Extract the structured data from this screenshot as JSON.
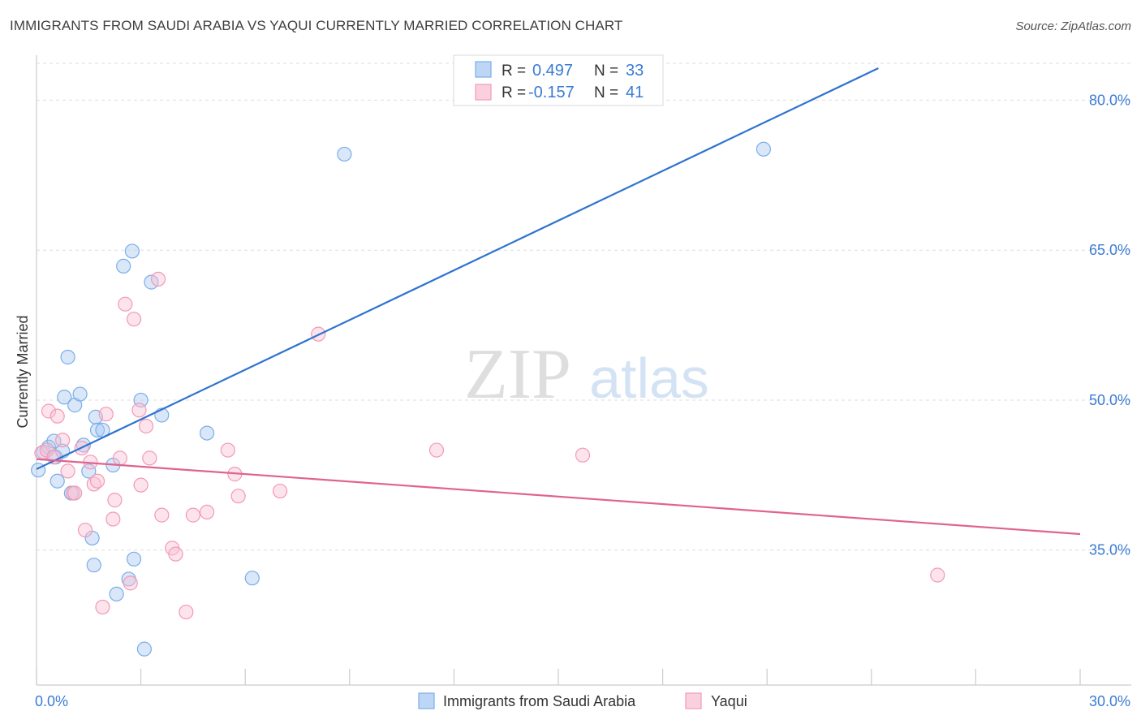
{
  "header": {
    "title": "IMMIGRANTS FROM SAUDI ARABIA VS YAQUI CURRENTLY MARRIED CORRELATION CHART",
    "source": "Source: ZipAtlas.com"
  },
  "watermark": {
    "zip": "ZIP",
    "atlas": "atlas"
  },
  "stats": [
    {
      "r_label": "R =",
      "r_value": "0.497",
      "n_label": "N =",
      "n_value": "33",
      "color": "#7aaee8"
    },
    {
      "r_label": "R =",
      "r_value": "-0.157",
      "n_label": "N =",
      "n_value": "41",
      "color": "#f29ab5"
    }
  ],
  "legend": [
    {
      "label": "Immigrants from Saudi Arabia",
      "color": "#7aaee8"
    },
    {
      "label": "Yaqui",
      "color": "#f29ab5"
    }
  ],
  "chart_data": {
    "type": "scatter",
    "xlabel": "",
    "ylabel": "Currently Married",
    "xlim": [
      0,
      30
    ],
    "ylim": [
      21.5,
      84.5
    ],
    "x_tick_labels": [
      {
        "value": 0,
        "label": "0.0%"
      },
      {
        "value": 30,
        "label": "30.0%"
      }
    ],
    "y_tick_labels": [
      {
        "value": 35,
        "label": "35.0%"
      },
      {
        "value": 50,
        "label": "50.0%"
      },
      {
        "value": 65,
        "label": "65.0%"
      },
      {
        "value": 80,
        "label": "80.0%"
      }
    ],
    "x_minor_ticks": [
      0,
      3,
      6,
      9,
      12,
      15,
      18,
      21,
      24,
      27,
      30
    ],
    "gridlines": true,
    "series": [
      {
        "name": "Immigrants from Saudi Arabia",
        "color": "#7aaee8",
        "line_color": "#2e73d0",
        "trend": {
          "x": [
            0.0,
            24.2
          ],
          "y": [
            43.1,
            83.2
          ]
        },
        "points": [
          {
            "x": 0.05,
            "y": 43.0
          },
          {
            "x": 0.2,
            "y": 44.8
          },
          {
            "x": 0.35,
            "y": 45.3
          },
          {
            "x": 0.55,
            "y": 44.3
          },
          {
            "x": 0.5,
            "y": 45.9
          },
          {
            "x": 0.6,
            "y": 41.9
          },
          {
            "x": 0.75,
            "y": 44.9
          },
          {
            "x": 0.8,
            "y": 50.3
          },
          {
            "x": 0.9,
            "y": 54.3
          },
          {
            "x": 1.0,
            "y": 40.7
          },
          {
            "x": 1.1,
            "y": 49.5
          },
          {
            "x": 1.25,
            "y": 50.6
          },
          {
            "x": 1.35,
            "y": 45.5
          },
          {
            "x": 1.5,
            "y": 42.9
          },
          {
            "x": 1.6,
            "y": 36.2
          },
          {
            "x": 1.65,
            "y": 33.5
          },
          {
            "x": 1.7,
            "y": 48.3
          },
          {
            "x": 1.75,
            "y": 47.0
          },
          {
            "x": 1.9,
            "y": 47.0
          },
          {
            "x": 2.2,
            "y": 43.5
          },
          {
            "x": 2.3,
            "y": 30.6
          },
          {
            "x": 2.5,
            "y": 63.4
          },
          {
            "x": 2.65,
            "y": 32.1
          },
          {
            "x": 2.75,
            "y": 64.9
          },
          {
            "x": 2.8,
            "y": 34.1
          },
          {
            "x": 3.0,
            "y": 50.0
          },
          {
            "x": 3.1,
            "y": 25.1
          },
          {
            "x": 3.3,
            "y": 61.8
          },
          {
            "x": 3.6,
            "y": 48.5
          },
          {
            "x": 4.9,
            "y": 46.7
          },
          {
            "x": 6.2,
            "y": 32.2
          },
          {
            "x": 8.85,
            "y": 74.6
          },
          {
            "x": 20.9,
            "y": 75.1
          }
        ]
      },
      {
        "name": "Yaqui",
        "color": "#f29ab5",
        "line_color": "#e0638e",
        "trend": {
          "x": [
            0.0,
            30.0
          ],
          "y": [
            44.1,
            36.6
          ]
        },
        "points": [
          {
            "x": 0.15,
            "y": 44.7
          },
          {
            "x": 0.3,
            "y": 45.0
          },
          {
            "x": 0.35,
            "y": 48.9
          },
          {
            "x": 0.5,
            "y": 44.3
          },
          {
            "x": 0.6,
            "y": 48.4
          },
          {
            "x": 0.75,
            "y": 46.0
          },
          {
            "x": 0.9,
            "y": 42.9
          },
          {
            "x": 1.05,
            "y": 40.7
          },
          {
            "x": 1.1,
            "y": 40.7
          },
          {
            "x": 1.3,
            "y": 45.2
          },
          {
            "x": 1.4,
            "y": 37.0
          },
          {
            "x": 1.55,
            "y": 43.8
          },
          {
            "x": 1.65,
            "y": 41.6
          },
          {
            "x": 1.75,
            "y": 41.9
          },
          {
            "x": 1.9,
            "y": 29.3
          },
          {
            "x": 2.0,
            "y": 48.6
          },
          {
            "x": 2.2,
            "y": 38.1
          },
          {
            "x": 2.25,
            "y": 40.0
          },
          {
            "x": 2.4,
            "y": 44.2
          },
          {
            "x": 2.55,
            "y": 59.6
          },
          {
            "x": 2.7,
            "y": 31.7
          },
          {
            "x": 2.8,
            "y": 58.1
          },
          {
            "x": 2.95,
            "y": 49.0
          },
          {
            "x": 3.0,
            "y": 41.5
          },
          {
            "x": 3.15,
            "y": 47.4
          },
          {
            "x": 3.25,
            "y": 44.2
          },
          {
            "x": 3.5,
            "y": 62.1
          },
          {
            "x": 3.6,
            "y": 38.5
          },
          {
            "x": 3.9,
            "y": 35.2
          },
          {
            "x": 4.0,
            "y": 34.6
          },
          {
            "x": 4.3,
            "y": 28.8
          },
          {
            "x": 4.5,
            "y": 38.5
          },
          {
            "x": 4.9,
            "y": 38.8
          },
          {
            "x": 5.5,
            "y": 45.0
          },
          {
            "x": 5.7,
            "y": 42.6
          },
          {
            "x": 5.8,
            "y": 40.4
          },
          {
            "x": 7.0,
            "y": 40.9
          },
          {
            "x": 8.1,
            "y": 56.6
          },
          {
            "x": 11.5,
            "y": 45.0
          },
          {
            "x": 15.7,
            "y": 44.5
          },
          {
            "x": 25.9,
            "y": 32.5
          }
        ]
      }
    ]
  }
}
